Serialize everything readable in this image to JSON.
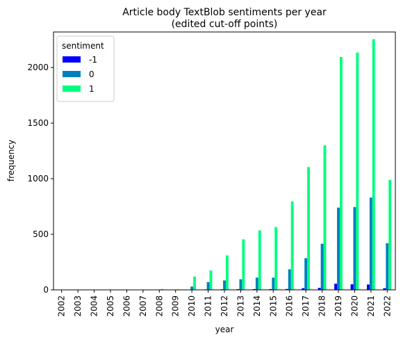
{
  "chart_data": {
    "type": "bar",
    "title": "Article body TextBlob sentiments per year",
    "subtitle": "(edited cut-off points)",
    "xlabel": "year",
    "ylabel": "frequency",
    "ylim": [
      0,
      2320
    ],
    "yticks": [
      "0",
      "500",
      "1000",
      "1500",
      "2000"
    ],
    "grid": false,
    "legend_position": "top-left",
    "legend_title": "sentiment",
    "categories": [
      "2002",
      "2003",
      "2004",
      "2005",
      "2006",
      "2007",
      "2008",
      "2009",
      "2010",
      "2011",
      "2012",
      "2013",
      "2014",
      "2015",
      "2016",
      "2017",
      "2018",
      "2019",
      "2020",
      "2021",
      "2022"
    ],
    "series": [
      {
        "name": "-1",
        "color": "#0000ff",
        "values": [
          0,
          0,
          0,
          0,
          0,
          0,
          0,
          0,
          2,
          4,
          5,
          6,
          7,
          7,
          8,
          15,
          18,
          55,
          50,
          48,
          15
        ]
      },
      {
        "name": "0",
        "color": "#0080bf",
        "values": [
          0,
          0,
          0,
          0,
          1,
          1,
          3,
          2,
          30,
          70,
          85,
          95,
          110,
          110,
          185,
          285,
          415,
          740,
          745,
          830,
          420
        ]
      },
      {
        "name": "1",
        "color": "#00ff80",
        "values": [
          0,
          0,
          0,
          0,
          3,
          2,
          8,
          5,
          120,
          175,
          310,
          455,
          535,
          565,
          795,
          1105,
          1300,
          2095,
          2135,
          2255,
          990
        ]
      }
    ]
  }
}
